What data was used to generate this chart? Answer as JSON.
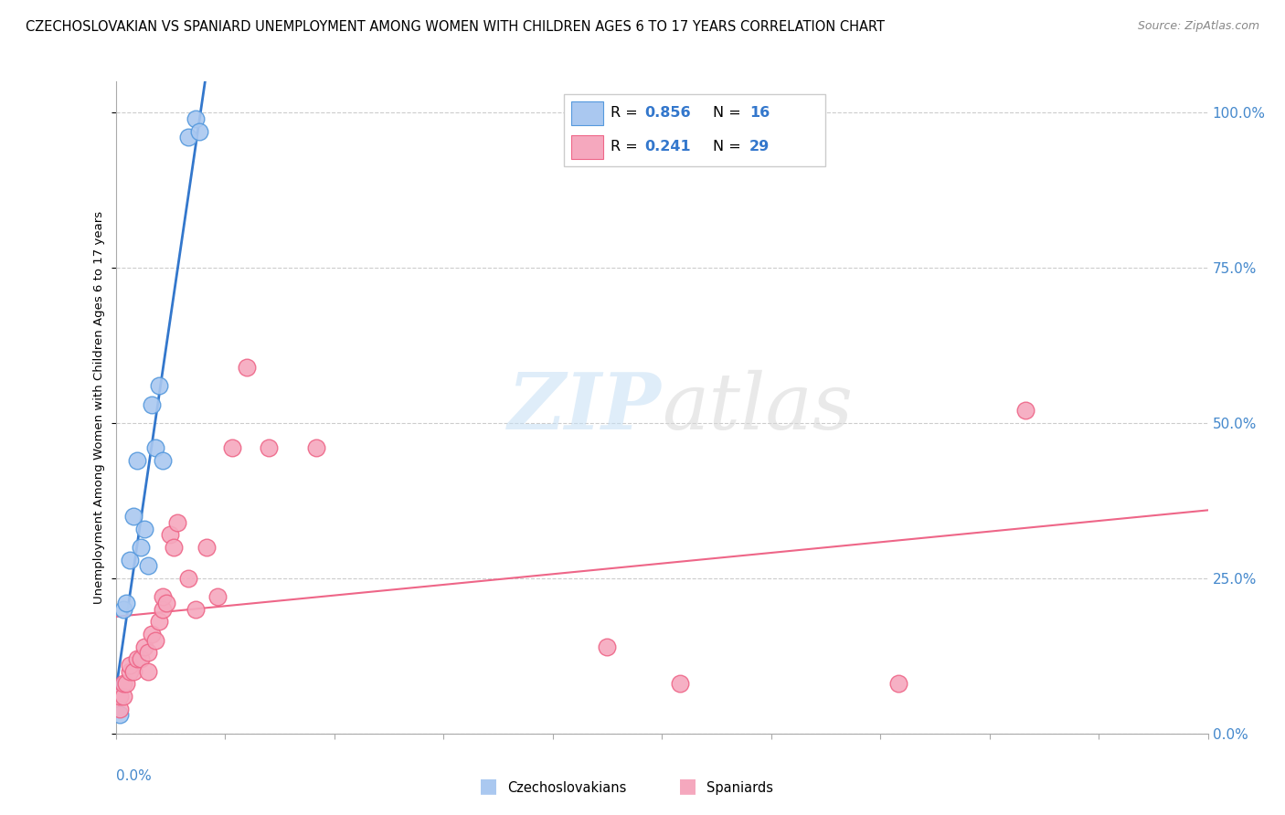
{
  "title": "CZECHOSLOVAKIAN VS SPANIARD UNEMPLOYMENT AMONG WOMEN WITH CHILDREN AGES 6 TO 17 YEARS CORRELATION CHART",
  "source": "Source: ZipAtlas.com",
  "ylabel": "Unemployment Among Women with Children Ages 6 to 17 years",
  "right_yticks": [
    "0.0%",
    "25.0%",
    "50.0%",
    "75.0%",
    "100.0%"
  ],
  "right_ytick_vals": [
    0.0,
    0.25,
    0.5,
    0.75,
    1.0
  ],
  "blue_color": "#aac8f0",
  "pink_color": "#f5a8be",
  "blue_edge_color": "#5599dd",
  "pink_edge_color": "#ee6688",
  "blue_line_color": "#3377cc",
  "pink_line_color": "#ee6688",
  "blue_label": "Czechoslovakians",
  "pink_label": "Spaniards",
  "czech_x": [
    0.001,
    0.002,
    0.003,
    0.004,
    0.005,
    0.006,
    0.007,
    0.008,
    0.009,
    0.01,
    0.011,
    0.012,
    0.013,
    0.02,
    0.022,
    0.023
  ],
  "czech_y": [
    0.03,
    0.2,
    0.21,
    0.28,
    0.35,
    0.44,
    0.3,
    0.33,
    0.27,
    0.53,
    0.46,
    0.56,
    0.44,
    0.96,
    0.99,
    0.97
  ],
  "spain_x": [
    0.001,
    0.001,
    0.002,
    0.002,
    0.003,
    0.004,
    0.004,
    0.005,
    0.006,
    0.007,
    0.008,
    0.009,
    0.009,
    0.01,
    0.011,
    0.012,
    0.013,
    0.013,
    0.014,
    0.015,
    0.016,
    0.017,
    0.02,
    0.022,
    0.025,
    0.028,
    0.032,
    0.036,
    0.042,
    0.055,
    0.135,
    0.155,
    0.215,
    0.25
  ],
  "spain_y": [
    0.04,
    0.06,
    0.06,
    0.08,
    0.08,
    0.1,
    0.11,
    0.1,
    0.12,
    0.12,
    0.14,
    0.1,
    0.13,
    0.16,
    0.15,
    0.18,
    0.2,
    0.22,
    0.21,
    0.32,
    0.3,
    0.34,
    0.25,
    0.2,
    0.3,
    0.22,
    0.46,
    0.59,
    0.46,
    0.46,
    0.14,
    0.08,
    0.08,
    0.52
  ],
  "xmin": 0.0,
  "xmax": 0.3,
  "ymin": 0.0,
  "ymax": 1.05
}
